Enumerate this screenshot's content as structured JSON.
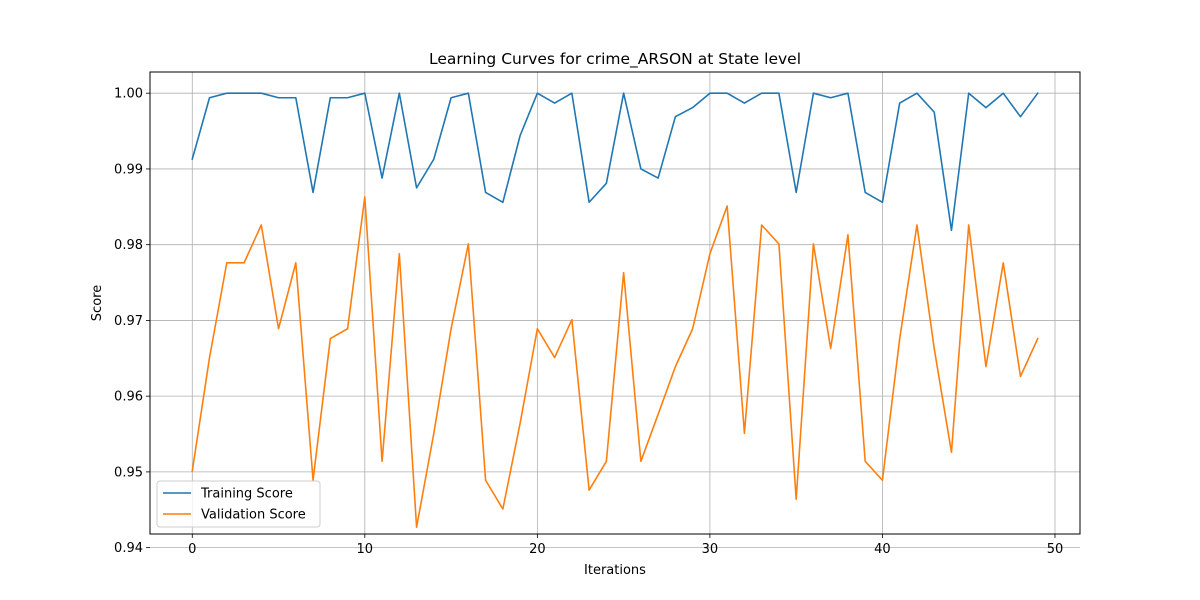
{
  "chart_data": {
    "type": "line",
    "title": "Learning Curves for crime_ARSON at State level",
    "xlabel": "Iterations",
    "ylabel": "Score",
    "xlim": [
      -2.45,
      51.45
    ],
    "ylim": [
      0.9418,
      1.0028
    ],
    "xticks": [
      0,
      10,
      20,
      30,
      40,
      50
    ],
    "yticks": [
      0.94,
      0.95,
      0.96,
      0.97,
      0.98,
      0.99,
      1.0
    ],
    "ytick_labels": [
      "0.94",
      "0.95",
      "0.96",
      "0.97",
      "0.98",
      "0.99",
      "1.00"
    ],
    "grid": true,
    "legend_position": "lower-left",
    "x": [
      0,
      1,
      2,
      3,
      4,
      5,
      6,
      7,
      8,
      9,
      10,
      11,
      12,
      13,
      14,
      15,
      16,
      17,
      18,
      19,
      20,
      21,
      22,
      23,
      24,
      25,
      26,
      27,
      28,
      29,
      30,
      31,
      32,
      33,
      34,
      35,
      36,
      37,
      38,
      39,
      40,
      41,
      42,
      43,
      44,
      45,
      46,
      47,
      48,
      49
    ],
    "series": [
      {
        "name": "Training Score",
        "color": "#1f77b4",
        "values": [
          0.9913,
          0.9994,
          1.0,
          1.0,
          1.0,
          0.9994,
          0.9994,
          0.9869,
          0.9994,
          0.9994,
          1.0,
          0.9888,
          1.0,
          0.9875,
          0.9913,
          0.9994,
          1.0,
          0.9869,
          0.9856,
          0.9944,
          1.0,
          0.9987,
          1.0,
          0.9856,
          0.9881,
          1.0,
          0.99,
          0.9888,
          0.9969,
          0.9981,
          1.0,
          1.0,
          0.9987,
          1.0,
          1.0,
          0.9869,
          1.0,
          0.9994,
          1.0,
          0.9869,
          0.9856,
          0.9987,
          1.0,
          0.9975,
          0.9819,
          1.0,
          0.9981,
          1.0,
          0.9969,
          1.0
        ]
      },
      {
        "name": "Validation Score",
        "color": "#ff7f0e",
        "values": [
          0.9501,
          0.9651,
          0.9776,
          0.9776,
          0.9826,
          0.9689,
          0.9776,
          0.9489,
          0.9676,
          0.9689,
          0.9863,
          0.9514,
          0.9788,
          0.9427,
          0.9551,
          0.9689,
          0.9801,
          0.9489,
          0.9451,
          0.9564,
          0.9689,
          0.9651,
          0.9701,
          0.9476,
          0.9514,
          0.9763,
          0.9514,
          0.9576,
          0.9639,
          0.9689,
          0.9788,
          0.9851,
          0.9551,
          0.9826,
          0.9801,
          0.9464,
          0.9801,
          0.9663,
          0.9813,
          0.9514,
          0.9489,
          0.9676,
          0.9826,
          0.9663,
          0.9526,
          0.9826,
          0.9639,
          0.9776,
          0.9626,
          0.9676
        ]
      }
    ]
  }
}
